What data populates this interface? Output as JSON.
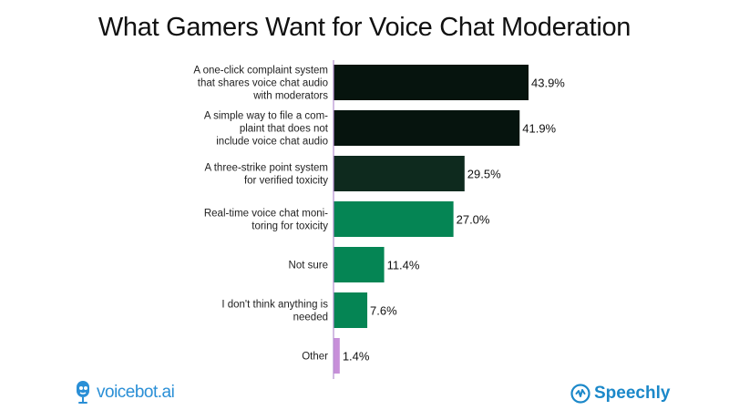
{
  "chart_data": {
    "type": "bar",
    "orientation": "horizontal",
    "title": "What Gamers Want for Voice Chat Moderation",
    "categories": [
      [
        "A one-click complaint system",
        "that shares voice chat audio",
        "with moderators"
      ],
      [
        "A simple way to file a com-",
        "plaint that does not",
        "include voice chat audio"
      ],
      [
        "A three-strike point system",
        "for verified toxicity"
      ],
      [
        "Real-time voice chat moni-",
        "toring for toxicity"
      ],
      [
        "Not sure"
      ],
      [
        "I don't think anything is",
        "needed"
      ],
      [
        "Other"
      ]
    ],
    "values": [
      43.9,
      41.9,
      29.5,
      27.0,
      11.4,
      7.6,
      1.4
    ],
    "value_labels": [
      "43.9%",
      "41.9%",
      "29.5%",
      "27.0%",
      "11.4%",
      "7.6%",
      "1.4%"
    ],
    "bar_colors": [
      "#06140e",
      "#06140e",
      "#0e2a1e",
      "#058554",
      "#058554",
      "#058554",
      "#c78fd9"
    ],
    "axis_color": "#b48fd0",
    "xlim": [
      0,
      45
    ],
    "grid": false,
    "legend": "none"
  },
  "branding": {
    "left_logo_text": "voicebot.ai",
    "left_logo_icon": "microphone-icon",
    "right_logo_text": "Speechly",
    "right_logo_icon": "speechly-icon"
  }
}
